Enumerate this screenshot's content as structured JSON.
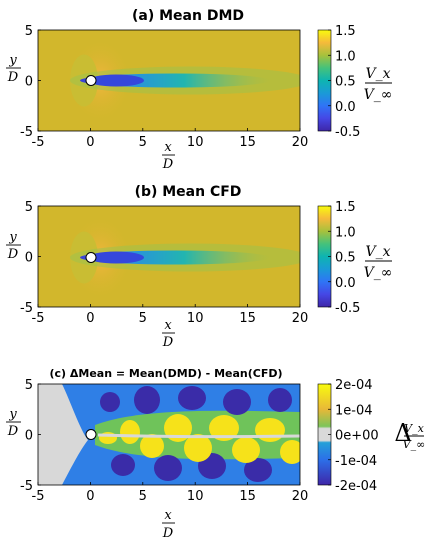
{
  "chart_data": [
    {
      "type": "heatmap",
      "title": "(a) Mean DMD",
      "xlabel": {
        "num": "x",
        "den": "D"
      },
      "ylabel": {
        "num": "y",
        "den": "D"
      },
      "xlim": [
        -5,
        20
      ],
      "ylim": [
        -5,
        5
      ],
      "xticks": [
        -5,
        0,
        5,
        10,
        15,
        20
      ],
      "yticks": [
        -5,
        0,
        5
      ],
      "colorbar": {
        "label": {
          "num": "V_x",
          "den": "V_∞"
        },
        "range": [
          -0.5,
          1.5
        ],
        "ticks": [
          -0.5,
          0.0,
          0.5,
          1.0,
          1.5
        ],
        "tick_labels": [
          "-0.5",
          "0.0",
          "0.5",
          "1.0",
          "1.5"
        ]
      },
      "field": "mean streamwise velocity V_x/V_∞ around a cylinder at origin; free stream ~1.0, acceleration ~1.2 at sides, wake deficit down to ~-0.3 behind cylinder recovering by x~15",
      "obstacle": {
        "shape": "circle",
        "center": [
          0,
          0
        ],
        "diameter": 1
      }
    },
    {
      "type": "heatmap",
      "title": "(b) Mean CFD",
      "xlabel": {
        "num": "x",
        "den": "D"
      },
      "ylabel": {
        "num": "y",
        "den": "D"
      },
      "xlim": [
        -5,
        20
      ],
      "ylim": [
        -5,
        5
      ],
      "xticks": [
        -5,
        0,
        5,
        10,
        15,
        20
      ],
      "yticks": [
        -5,
        0,
        5
      ],
      "colorbar": {
        "label": {
          "num": "V_x",
          "den": "V_∞"
        },
        "range": [
          -0.5,
          1.5
        ],
        "ticks": [
          -0.5,
          0.0,
          0.5,
          1.0,
          1.5
        ],
        "tick_labels": [
          "-0.5",
          "0.0",
          "0.5",
          "1.0",
          "1.5"
        ]
      },
      "field": "same as (a)",
      "obstacle": {
        "shape": "circle",
        "center": [
          0,
          0
        ],
        "diameter": 1
      }
    },
    {
      "type": "heatmap",
      "title": "(c) ΔMean = Mean(DMD) - Mean(CFD)",
      "xlabel": {
        "num": "x",
        "den": "D"
      },
      "ylabel": {
        "num": "y",
        "den": "D"
      },
      "xlim": [
        -5,
        20
      ],
      "ylim": [
        -5,
        5
      ],
      "xticks": [
        -5,
        0,
        5,
        10,
        15,
        20
      ],
      "yticks": [
        -5,
        0,
        5
      ],
      "colorbar": {
        "label": {
          "prefix": "Δ",
          "num": "V_x",
          "den": "V_∞"
        },
        "range": [
          -0.0002,
          0.0002
        ],
        "ticks": [
          -0.0002,
          -0.0001,
          0,
          0.0001,
          0.0002
        ],
        "tick_labels": [
          "-2e-04",
          "-1e-04",
          "0e+00",
          "1e-04",
          "2e-04"
        ]
      },
      "field": "alternating positive/negative difference lobes in cylinder wake, amplitude up to ~2e-04",
      "obstacle": {
        "shape": "circle",
        "center": [
          0,
          0
        ],
        "diameter": 1
      }
    }
  ]
}
